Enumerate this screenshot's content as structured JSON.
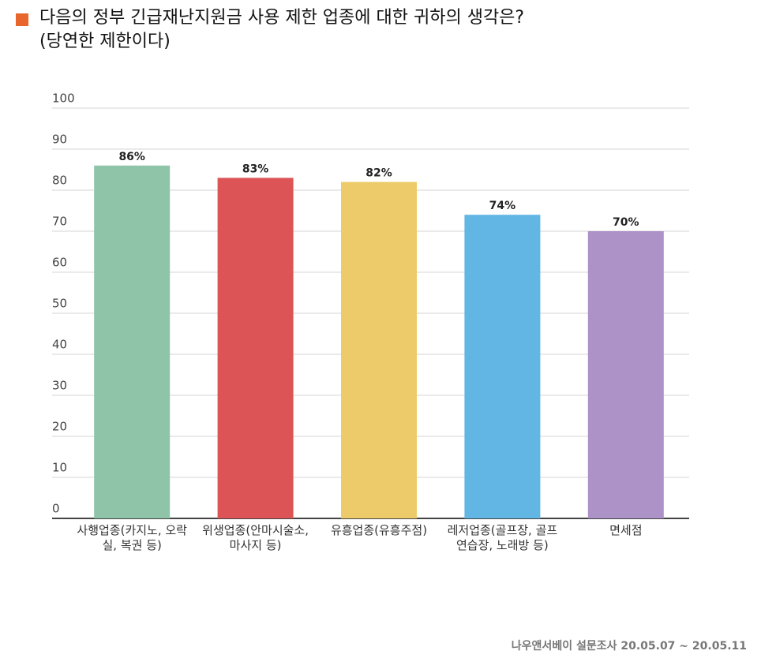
{
  "chart_data": {
    "type": "bar",
    "title": "다음의 정부 긴급재난지원금 사용 제한 업종에 대한 귀하의 생각은?",
    "subtitle": "(당연한 제한이다)",
    "categories": [
      "사행업종(카지노, 오락실, 복권 등)",
      "위생업종(안마시술소, 마사지 등)",
      "유흥업종(유흥주점)",
      "레저업종(골프장, 골프연습장, 노래방 등)",
      "면세점"
    ],
    "values": [
      86,
      83,
      82,
      74,
      70
    ],
    "value_labels": [
      "86%",
      "83%",
      "82%",
      "74%",
      "70%"
    ],
    "colors": [
      "#8fc4a8",
      "#dc5456",
      "#eecb6a",
      "#62b6e4",
      "#ad92c7"
    ],
    "ylim": [
      0,
      100
    ],
    "yticks": [
      0,
      10,
      20,
      30,
      40,
      50,
      60,
      70,
      80,
      90,
      100
    ],
    "grid": true,
    "source": "나우앤서베이 설문조사 20.05.07 ~ 20.05.11"
  }
}
